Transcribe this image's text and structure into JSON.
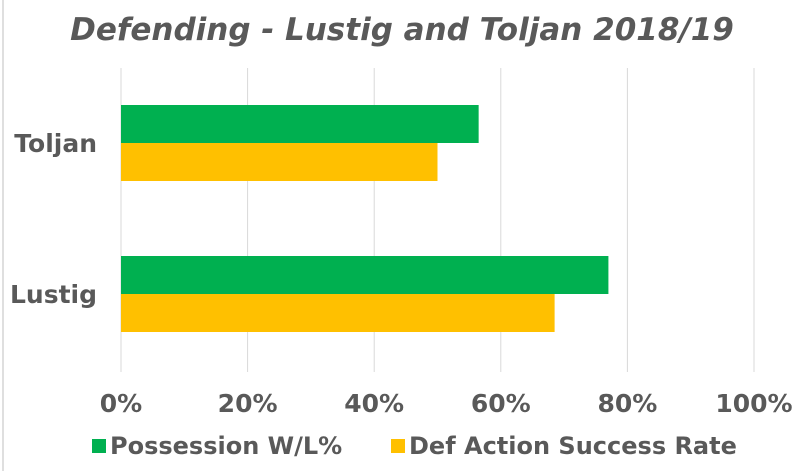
{
  "chart_data": {
    "type": "bar",
    "orientation": "horizontal",
    "title": "Defending - Lustig and Toljan 2018/19",
    "categories": [
      "Toljan",
      "Lustig"
    ],
    "series": [
      {
        "name": "Possession W/L%",
        "color": "#00b050",
        "values": [
          56.5,
          77
        ]
      },
      {
        "name": "Def Action Success Rate",
        "color": "#ffc000",
        "values": [
          50,
          68.5
        ]
      }
    ],
    "xlim": [
      0,
      100
    ],
    "xticks": [
      "0%",
      "20%",
      "40%",
      "60%",
      "80%",
      "100%"
    ],
    "xlabel": "",
    "ylabel": "",
    "grid": "vertical",
    "legend": "bottom"
  }
}
